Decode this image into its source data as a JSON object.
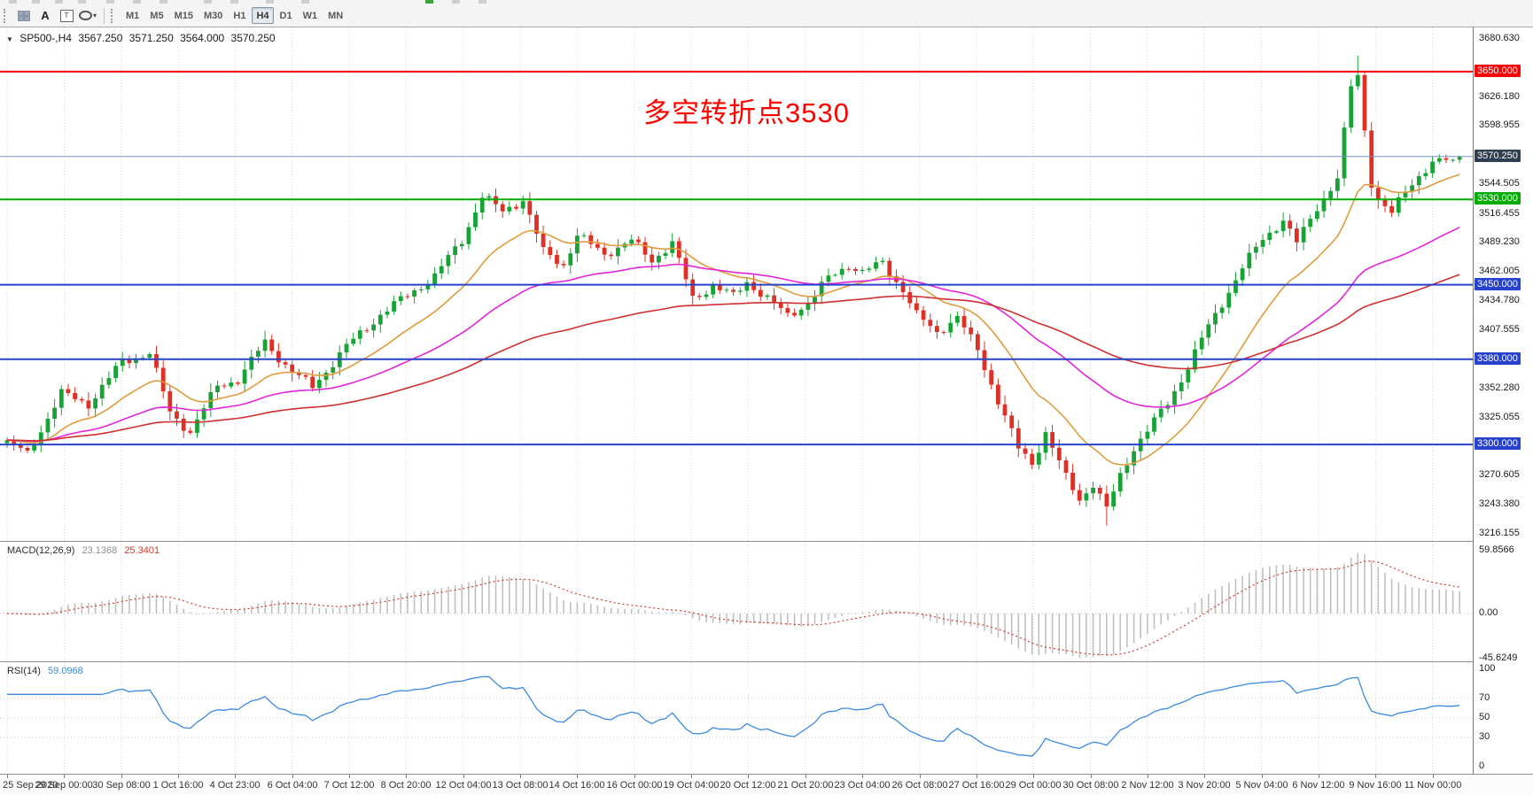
{
  "toolbar": {
    "icons": {
      "text_glyph": "A",
      "label_glyph": "T",
      "dropdown": "▾"
    },
    "tools": [
      {
        "name": "chart-grid"
      },
      {
        "name": "text-tool"
      },
      {
        "name": "label-tool"
      },
      {
        "name": "shapes-tool"
      }
    ],
    "timeframes": [
      {
        "label": "M1"
      },
      {
        "label": "M5"
      },
      {
        "label": "M15"
      },
      {
        "label": "M30"
      },
      {
        "label": "H1"
      },
      {
        "label": "H4"
      },
      {
        "label": "D1"
      },
      {
        "label": "W1"
      },
      {
        "label": "MN"
      }
    ],
    "active_timeframe": "H4"
  },
  "chart": {
    "collapse_icon": "▼",
    "symbol_title": "SP500-,H4",
    "ohlc": {
      "open": "3567.250",
      "high": "3571.250",
      "low": "3564.000",
      "close": "3570.250"
    },
    "annotation": {
      "text": "多空转折点3530",
      "color": "#ff0000"
    }
  },
  "indicators": {
    "macd": {
      "label": "MACD(12,26,9)",
      "main_value": "23.1368",
      "signal_value": "25.3401"
    },
    "rsi": {
      "label": "RSI(14)",
      "value": "59.0968"
    }
  },
  "chart_data": {
    "type": "candlestick",
    "symbol": "SP500-",
    "timeframe": "H4",
    "title_annotation": "多空转折点3530",
    "price_axis": {
      "labels": [
        3680.63,
        3626.18,
        3598.955,
        3544.505,
        3516.455,
        3489.23,
        3462.005,
        3434.78,
        3407.555,
        3352.28,
        3325.055,
        3270.605,
        3243.38,
        3216.155
      ]
    },
    "horizontal_lines": [
      {
        "price": 3650.0,
        "color": "#ff0000",
        "badge": "3650.000",
        "width": 2
      },
      {
        "price": 3530.0,
        "color": "#00ad00",
        "badge": "3530.000",
        "width": 2
      },
      {
        "price": 3450.0,
        "color": "#2742cc",
        "badge": "3450.000",
        "width": 2
      },
      {
        "price": 3380.0,
        "color": "#2742cc",
        "badge": "3380.000",
        "width": 2
      },
      {
        "price": 3300.0,
        "color": "#2742cc",
        "badge": "3300.000",
        "width": 2
      }
    ],
    "bid_line": {
      "price": 3570.25,
      "badge": "3570.250",
      "badge_color": "#2f3e50",
      "line_color": "#7a93b8"
    },
    "bars": 215,
    "close_anchors": [
      [
        0,
        3302
      ],
      [
        3,
        3291
      ],
      [
        8,
        3348
      ],
      [
        12,
        3338
      ],
      [
        17,
        3378
      ],
      [
        21,
        3386
      ],
      [
        24,
        3330
      ],
      [
        27,
        3312
      ],
      [
        31,
        3355
      ],
      [
        34,
        3361
      ],
      [
        38,
        3396
      ],
      [
        42,
        3368
      ],
      [
        45,
        3354
      ],
      [
        50,
        3392
      ],
      [
        55,
        3422
      ],
      [
        59,
        3440
      ],
      [
        63,
        3458
      ],
      [
        67,
        3492
      ],
      [
        70,
        3533
      ],
      [
        73,
        3519
      ],
      [
        76,
        3530
      ],
      [
        79,
        3481
      ],
      [
        82,
        3469
      ],
      [
        84,
        3496
      ],
      [
        88,
        3479
      ],
      [
        92,
        3491
      ],
      [
        95,
        3473
      ],
      [
        98,
        3489
      ],
      [
        101,
        3437
      ],
      [
        104,
        3449
      ],
      [
        107,
        3439
      ],
      [
        109,
        3453
      ],
      [
        112,
        3437
      ],
      [
        115,
        3421
      ],
      [
        118,
        3433
      ],
      [
        121,
        3456
      ],
      [
        124,
        3469
      ],
      [
        126,
        3461
      ],
      [
        129,
        3471
      ],
      [
        132,
        3445
      ],
      [
        134,
        3421
      ],
      [
        137,
        3406
      ],
      [
        140,
        3419
      ],
      [
        143,
        3389
      ],
      [
        146,
        3341
      ],
      [
        149,
        3296
      ],
      [
        151,
        3283
      ],
      [
        153,
        3311
      ],
      [
        156,
        3269
      ],
      [
        158,
        3249
      ],
      [
        160,
        3263
      ],
      [
        162,
        3239
      ],
      [
        164,
        3271
      ],
      [
        166,
        3297
      ],
      [
        168,
        3313
      ],
      [
        171,
        3339
      ],
      [
        174,
        3373
      ],
      [
        176,
        3399
      ],
      [
        179,
        3433
      ],
      [
        182,
        3466
      ],
      [
        185,
        3493
      ],
      [
        188,
        3511
      ],
      [
        190,
        3489
      ],
      [
        193,
        3523
      ],
      [
        196,
        3549
      ],
      [
        198,
        3636
      ],
      [
        199,
        3646
      ],
      [
        201,
        3546
      ],
      [
        202,
        3529
      ],
      [
        204,
        3516
      ],
      [
        206,
        3539
      ],
      [
        208,
        3553
      ],
      [
        210,
        3563
      ],
      [
        212,
        3567
      ],
      [
        214,
        3570.25
      ]
    ],
    "extremes": {
      "spike_high": 3665,
      "low_wick": 3224
    },
    "last_candle": {
      "open": 3567.25,
      "high": 3571.25,
      "low": 3564.0,
      "close": 3570.25
    },
    "candle_colors": {
      "up": "#19a337",
      "down": "#df3025"
    },
    "moving_averages": [
      {
        "name": "fast",
        "period": 16,
        "color": "#e09c3c"
      },
      {
        "name": "medium",
        "period": 45,
        "color": "#e226d8"
      },
      {
        "name": "slow",
        "period": 96,
        "color": "#cf3030"
      }
    ],
    "time_labels": [
      "25 Sep 2020",
      "29 Sep 00:00",
      "30 Sep 08:00",
      "1 Oct 16:00",
      "4 Oct 23:00",
      "6 Oct 04:00",
      "7 Oct 12:00",
      "8 Oct 20:00",
      "12 Oct 04:00",
      "13 Oct 08:00",
      "14 Oct 16:00",
      "16 Oct 00:00",
      "19 Oct 04:00",
      "20 Oct 12:00",
      "21 Oct 20:00",
      "23 Oct 04:00",
      "26 Oct 08:00",
      "27 Oct 16:00",
      "29 Oct 00:00",
      "30 Oct 08:00",
      "2 Nov 12:00",
      "3 Nov 20:00",
      "5 Nov 04:00",
      "6 Nov 12:00",
      "9 Nov 16:00",
      "11 Nov 00:00"
    ],
    "macd": {
      "params": [
        12,
        26,
        9
      ],
      "axis_labels": [
        {
          "text": "59.8566",
          "value": 59.8566
        },
        {
          "text": "0.00",
          "value": 0
        },
        {
          "text": "-45.6249",
          "value": -45.6249
        }
      ],
      "histogram_color": "#c0c0c0",
      "signal_color": "#d8382b"
    },
    "rsi": {
      "period": 14,
      "color": "#3b8ae0",
      "axis_labels": [
        {
          "text": "100",
          "value": 100
        },
        {
          "text": "70",
          "value": 70
        },
        {
          "text": "50",
          "value": 50
        },
        {
          "text": "30",
          "value": 30
        },
        {
          "text": "0",
          "value": 0
        }
      ],
      "levels": [
        70,
        50,
        30
      ]
    }
  }
}
